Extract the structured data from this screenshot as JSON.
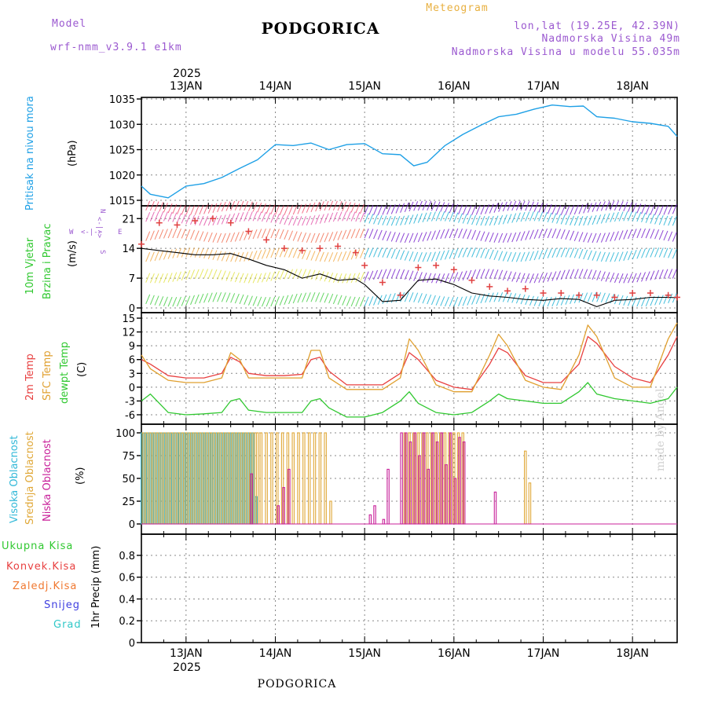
{
  "header": {
    "model_label": "Model",
    "model_name": "wrf-nmm_v3.9.1 e1km",
    "title": "PODGORICA",
    "meteogram": "Meteogram",
    "lonlat": "lon,lat (19.25E, 42.39N)",
    "elev": "Nadmorska Visina 49m",
    "elev_model": "Nadmorska Visina u modelu 55.035m",
    "footer_title": "PODGORICA",
    "watermark": "made by Angel"
  },
  "time_axis": {
    "year": "2025",
    "days": [
      "13JAN",
      "14JAN",
      "15JAN",
      "16JAN",
      "17JAN",
      "18JAN"
    ]
  },
  "labels": {
    "pressure": [
      "Pritisak na nivou mora",
      "(hPa)"
    ],
    "wind": [
      "10m Vjetar",
      "Brzina i Pravac",
      "(m/s)"
    ],
    "compass": {
      "n": "N",
      "s": "S",
      "e": "E",
      "w": "W",
      "arrows": "<-|->"
    },
    "temp": [
      "2m Temp",
      "SFC Temp",
      "dewpt Temp",
      "(C)"
    ],
    "cloud": [
      "Visoka Oblacnost",
      "Srednja Oblacnost",
      "Niska Oblacnost",
      "(%)"
    ],
    "precip": [
      "Ukupna Kisa",
      "Konvek.Kisa",
      "Zaledj.Kisa",
      "Snijeg",
      "Grad",
      "1hr Precip (mm)"
    ]
  },
  "colors": {
    "pressure": "#1ea0e6",
    "temp2m": "#e84040",
    "sfc": "#e0a030",
    "dewpt": "#30c830",
    "cloud_high": "#30b8d8",
    "cloud_mid": "#e0a838",
    "cloud_low": "#c8209a",
    "wind_speed": "#000000",
    "gust": "#e04040",
    "precip_total": "#30c830",
    "precip_conv": "#e84040",
    "precip_frz": "#f07830",
    "precip_snow": "#4040e0",
    "precip_hail": "#30c8c8",
    "label_model": "#9b59d0",
    "label_meteogram": "#e8b040"
  },
  "chart_data": [
    {
      "type": "line",
      "panel": "pressure",
      "ylabel": "(hPa)",
      "ylim": [
        1015,
        1035
      ],
      "yticks": [
        1015,
        1020,
        1025,
        1030,
        1035
      ],
      "x": [
        12.5,
        12.6,
        12.8,
        13.0,
        13.2,
        13.4,
        13.6,
        13.8,
        14.0,
        14.2,
        14.4,
        14.6,
        14.8,
        15.0,
        15.2,
        15.4,
        15.55,
        15.7,
        15.9,
        16.1,
        16.3,
        16.5,
        16.7,
        16.9,
        17.1,
        17.3,
        17.45,
        17.6,
        17.8,
        18.0,
        18.2,
        18.4,
        18.5
      ],
      "series": [
        {
          "values": [
            1017.8,
            1016.2,
            1015.5,
            1017.8,
            1018.3,
            1019.5,
            1021.3,
            1023.0,
            1026.0,
            1025.8,
            1026.3,
            1025.0,
            1026.0,
            1026.2,
            1024.2,
            1024.0,
            1021.8,
            1022.5,
            1025.8,
            1028.0,
            1029.8,
            1031.5,
            1032.0,
            1033.0,
            1033.8,
            1033.5,
            1033.6,
            1031.5,
            1031.2,
            1030.5,
            1030.2,
            1029.6,
            1027.6
          ]
        }
      ],
      "grid": true
    },
    {
      "type": "line",
      "panel": "wind",
      "ylabel": "(m/s)",
      "ylim": [
        0,
        24
      ],
      "yticks": [
        0,
        7,
        14,
        21
      ],
      "x": [
        12.5,
        12.7,
        12.9,
        13.1,
        13.3,
        13.5,
        13.7,
        13.9,
        14.1,
        14.3,
        14.5,
        14.7,
        14.9,
        15.0,
        15.2,
        15.4,
        15.6,
        15.8,
        16.0,
        16.2,
        16.4,
        16.6,
        16.8,
        17.0,
        17.2,
        17.4,
        17.6,
        17.8,
        18.0,
        18.2,
        18.4,
        18.5
      ],
      "series": [
        {
          "name": "speed",
          "values": [
            14.0,
            13.5,
            13.0,
            12.5,
            12.5,
            12.8,
            11.5,
            10.0,
            9.0,
            7.0,
            8.0,
            6.5,
            6.8,
            5.5,
            1.5,
            1.8,
            6.5,
            6.8,
            5.5,
            3.5,
            2.8,
            2.5,
            2.0,
            1.8,
            2.2,
            2.0,
            0.3,
            1.8,
            2.0,
            2.5,
            2.5,
            2.4
          ]
        },
        {
          "name": "gust",
          "values": [
            15.0,
            20.0,
            19.5,
            20.5,
            21.0,
            20.0,
            18.0,
            16.0,
            14.0,
            13.5,
            14.0,
            14.5,
            13.0,
            10.0,
            6.0,
            3.0,
            9.5,
            10.0,
            9.0,
            6.5,
            5.0,
            4.0,
            4.5,
            3.5,
            3.5,
            3.0,
            3.0,
            2.5,
            3.5,
            3.5,
            3.0,
            2.5
          ]
        }
      ],
      "grid": true
    },
    {
      "type": "line",
      "panel": "temperature",
      "ylabel": "(C)",
      "ylim": [
        -8,
        15
      ],
      "yticks": [
        -6,
        -3,
        0,
        3,
        6,
        9,
        12,
        15
      ],
      "x": [
        12.5,
        12.6,
        12.8,
        13.0,
        13.2,
        13.4,
        13.5,
        13.6,
        13.7,
        13.9,
        14.1,
        14.3,
        14.4,
        14.5,
        14.6,
        14.8,
        15.0,
        15.2,
        15.4,
        15.5,
        15.6,
        15.8,
        16.0,
        16.2,
        16.4,
        16.5,
        16.6,
        16.8,
        17.0,
        17.2,
        17.4,
        17.5,
        17.6,
        17.8,
        18.0,
        18.2,
        18.4,
        18.5
      ],
      "series": [
        {
          "name": "2m Temp",
          "values": [
            6.0,
            5.0,
            2.5,
            2.0,
            2.0,
            3.0,
            6.5,
            5.5,
            3.0,
            2.5,
            2.5,
            2.8,
            6.0,
            6.5,
            3.5,
            0.5,
            0.5,
            0.5,
            3.0,
            7.5,
            6.0,
            1.5,
            0.0,
            -0.5,
            5.0,
            8.5,
            7.5,
            2.5,
            1.0,
            1.0,
            5.0,
            11.0,
            9.5,
            4.5,
            2.0,
            1.0,
            7.0,
            11.0
          ]
        },
        {
          "name": "SFC Temp",
          "values": [
            7.0,
            4.0,
            1.5,
            1.0,
            1.0,
            2.0,
            7.5,
            6.0,
            2.0,
            2.0,
            2.0,
            2.0,
            8.0,
            8.0,
            2.0,
            -0.5,
            -0.5,
            -0.5,
            2.0,
            10.5,
            8.0,
            0.5,
            -1.0,
            -1.0,
            7.0,
            11.5,
            9.0,
            1.5,
            0.0,
            -0.5,
            7.0,
            13.5,
            11.0,
            2.0,
            0.0,
            0.0,
            10.5,
            14.0
          ]
        },
        {
          "name": "dewpt Temp",
          "values": [
            -3.0,
            -1.5,
            -5.5,
            -6.0,
            -5.8,
            -5.5,
            -3.0,
            -2.5,
            -5.0,
            -5.5,
            -5.5,
            -5.5,
            -3.0,
            -2.5,
            -4.5,
            -6.5,
            -6.5,
            -5.5,
            -3.0,
            -1.0,
            -3.5,
            -5.5,
            -6.0,
            -5.5,
            -3.0,
            -1.5,
            -2.5,
            -3.0,
            -3.5,
            -3.5,
            -1.0,
            1.0,
            -1.5,
            -2.5,
            -3.0,
            -3.5,
            -2.5,
            0.0
          ]
        }
      ],
      "grid": true
    },
    {
      "type": "bar",
      "panel": "cloud",
      "ylabel": "(%)",
      "ylim": [
        0,
        100
      ],
      "yticks": [
        0,
        25,
        50,
        75,
        100
      ],
      "x": [
        12.52,
        12.56,
        12.6,
        12.64,
        12.68,
        12.72,
        12.76,
        12.8,
        12.84,
        12.88,
        12.92,
        12.96,
        13.0,
        13.04,
        13.08,
        13.12,
        13.16,
        13.2,
        13.24,
        13.28,
        13.32,
        13.36,
        13.4,
        13.44,
        13.48,
        13.52,
        13.56,
        13.6,
        13.64,
        13.68,
        13.72,
        13.76,
        13.8,
        13.84,
        13.9,
        13.96,
        14.02,
        14.08,
        14.14,
        14.2,
        14.26,
        14.32,
        14.38,
        14.44,
        14.5,
        14.56,
        14.62,
        15.05,
        15.1,
        15.2,
        15.25,
        15.4,
        15.45,
        15.5,
        15.55,
        15.6,
        15.65,
        15.7,
        15.75,
        15.8,
        15.85,
        15.9,
        15.95,
        16.0,
        16.05,
        16.1,
        16.15,
        16.45,
        16.8,
        16.85
      ],
      "series": [
        {
          "name": "Visoka Oblacnost",
          "values": [
            100,
            100,
            100,
            100,
            100,
            100,
            100,
            100,
            100,
            100,
            100,
            100,
            100,
            100,
            100,
            100,
            100,
            100,
            100,
            100,
            100,
            100,
            100,
            100,
            100,
            100,
            100,
            100,
            100,
            100,
            100,
            100,
            30,
            0,
            0,
            0,
            0,
            0,
            0,
            0,
            0,
            0,
            0,
            0,
            0,
            0,
            0,
            0,
            0,
            0,
            0,
            0,
            0,
            0,
            0,
            0,
            0,
            0,
            0,
            0,
            0,
            0,
            0,
            0,
            0,
            0,
            0,
            0,
            0,
            0
          ]
        },
        {
          "name": "Srednja Oblacnost",
          "values": [
            100,
            100,
            100,
            100,
            100,
            100,
            100,
            100,
            100,
            100,
            100,
            100,
            100,
            100,
            100,
            100,
            100,
            100,
            100,
            100,
            100,
            100,
            100,
            100,
            100,
            100,
            100,
            100,
            100,
            100,
            100,
            100,
            100,
            100,
            100,
            100,
            100,
            100,
            100,
            100,
            100,
            100,
            100,
            100,
            100,
            100,
            25,
            0,
            0,
            0,
            0,
            0,
            100,
            100,
            100,
            100,
            100,
            100,
            100,
            100,
            100,
            100,
            100,
            100,
            100,
            100,
            0,
            0,
            80,
            45
          ]
        },
        {
          "name": "Niska Oblacnost",
          "values": [
            0,
            0,
            0,
            0,
            0,
            0,
            0,
            0,
            0,
            0,
            0,
            0,
            0,
            0,
            0,
            0,
            0,
            0,
            0,
            0,
            0,
            0,
            0,
            0,
            0,
            0,
            0,
            0,
            0,
            0,
            55,
            0,
            0,
            0,
            0,
            0,
            20,
            40,
            60,
            0,
            0,
            0,
            0,
            0,
            0,
            0,
            0,
            10,
            20,
            5,
            60,
            100,
            100,
            90,
            100,
            75,
            100,
            60,
            100,
            90,
            100,
            65,
            100,
            50,
            95,
            90,
            0,
            35,
            0,
            0
          ]
        }
      ],
      "grid": true
    },
    {
      "type": "bar",
      "panel": "precipitation",
      "ylabel": "1hr Precip (mm)",
      "ylim": [
        0,
        1.0
      ],
      "yticks": [
        0,
        0.2,
        0.4,
        0.6,
        0.8
      ],
      "series": [
        {
          "name": "Ukupna Kisa",
          "values": []
        },
        {
          "name": "Konvek.Kisa",
          "values": []
        },
        {
          "name": "Zaledj.Kisa",
          "values": []
        },
        {
          "name": "Snijeg",
          "values": []
        },
        {
          "name": "Grad",
          "values": []
        }
      ],
      "grid": true
    }
  ]
}
